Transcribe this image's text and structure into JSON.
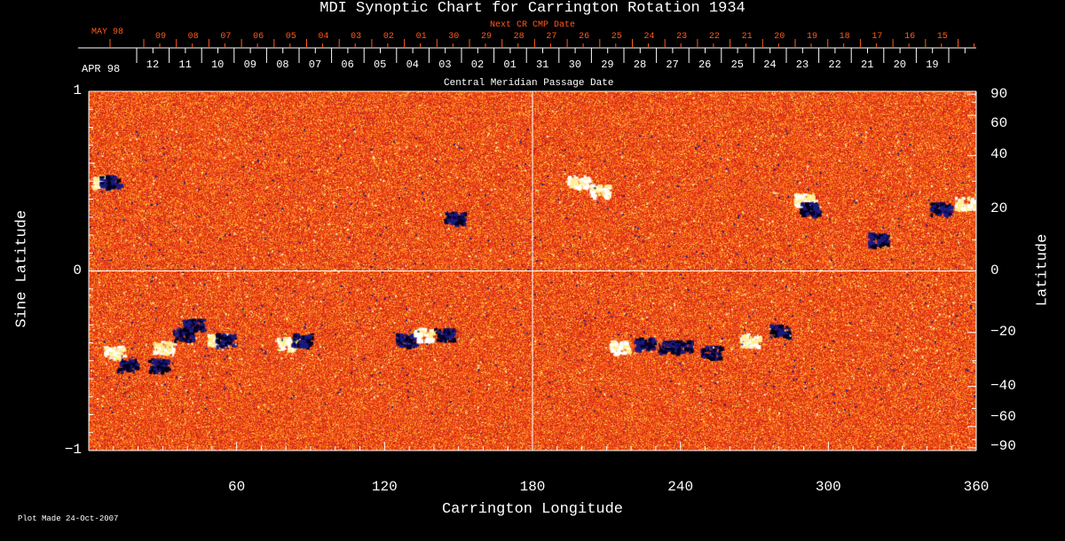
{
  "chart_data": {
    "type": "heatmap",
    "title": "MDI Synoptic Chart for Carrington Rotation 1934",
    "xlabel": "Carrington Longitude",
    "ylabel_left": "Sine Latitude",
    "ylabel_right": "Latitude",
    "xlim": [
      0,
      360
    ],
    "ylim": [
      -1,
      1
    ],
    "x_ticks": [
      60,
      120,
      180,
      240,
      300,
      360
    ],
    "y_ticks_left": [
      1,
      0,
      -1
    ],
    "y_ticks_left_labels": [
      "1",
      "0",
      "−1"
    ],
    "y_ticks_right": [
      90,
      60,
      40,
      20,
      0,
      -20,
      -40,
      -60,
      -90
    ],
    "y_ticks_right_labels": [
      "90",
      "60",
      "40",
      "20",
      "0",
      "−20",
      "−40",
      "−60",
      "−90"
    ],
    "top_axis": {
      "label": "Central Meridian Passage Date",
      "month_label": "APR 98",
      "dates": [
        "12",
        "11",
        "10",
        "09",
        "08",
        "07",
        "06",
        "05",
        "04",
        "03",
        "02",
        "01",
        "31",
        "30",
        "29",
        "28",
        "27",
        "26",
        "25",
        "24",
        "23",
        "22",
        "21",
        "20",
        "19"
      ]
    },
    "next_axis": {
      "label": "Next CR CMP Date",
      "month_label": "MAY 98",
      "dates": [
        "09",
        "08",
        "07",
        "06",
        "05",
        "04",
        "03",
        "02",
        "01",
        "30",
        "29",
        "28",
        "27",
        "26",
        "25",
        "24",
        "23",
        "22",
        "21",
        "20",
        "19",
        "18",
        "17",
        "16",
        "15"
      ]
    },
    "footer": "Plot Made 24-Oct-2007",
    "colors": {
      "background_field": "#e8401a",
      "positive": "#ffffff",
      "negative": "#1a1a80",
      "next_axis": "#ff5a1e"
    }
  }
}
